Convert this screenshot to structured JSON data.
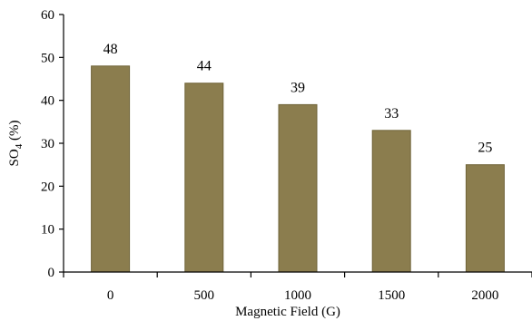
{
  "chart_data": {
    "type": "bar",
    "categories": [
      "0",
      "500",
      "1000",
      "1500",
      "2000"
    ],
    "values": [
      48,
      44,
      39,
      33,
      25
    ],
    "data_labels": [
      "48",
      "44",
      "39",
      "33",
      "25"
    ],
    "xlabel": "Magnetic  Field (G)",
    "ylabel": {
      "prefix": "SO",
      "subscript": "4",
      "suffix": " (%)"
    },
    "ylim": [
      0,
      60
    ],
    "yticks": [
      0,
      10,
      20,
      30,
      40,
      50,
      60
    ],
    "grid": false,
    "legend": "none",
    "colors": {
      "bar": "#8B7D4E",
      "bar_edge": "#6f6338",
      "axis": "#000000"
    }
  }
}
